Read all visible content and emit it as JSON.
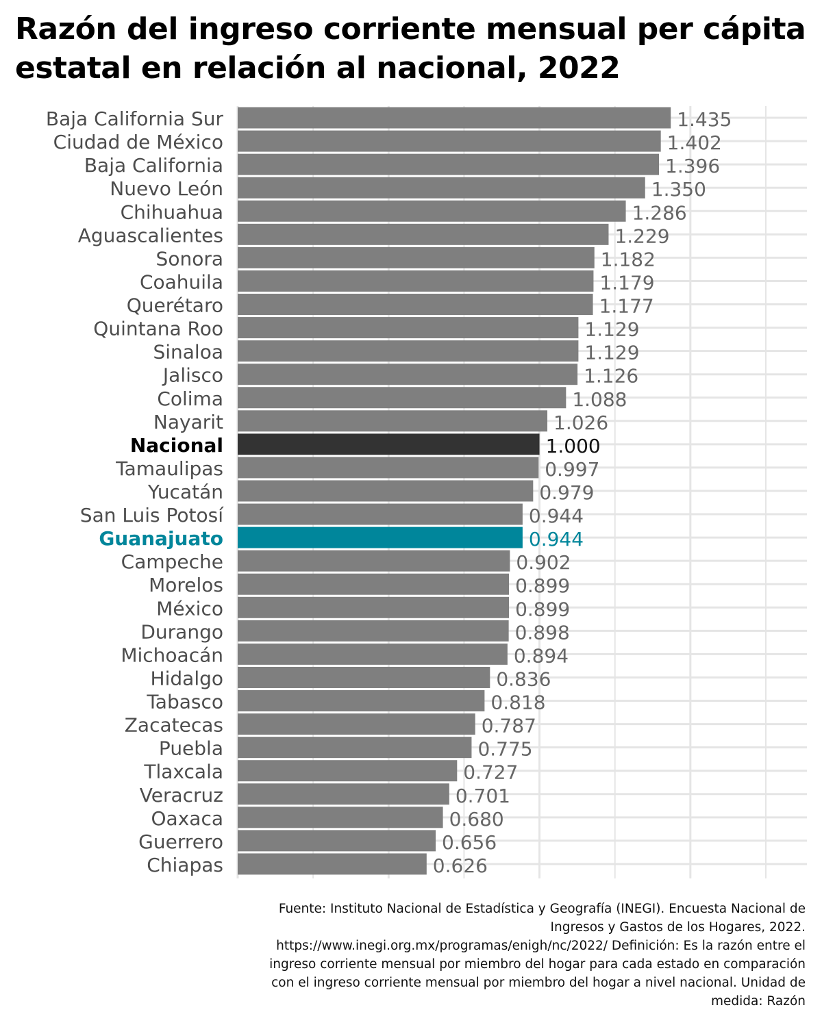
{
  "title": "Razón del ingreso corriente mensual per cápita estatal en relación al nacional, 2022",
  "source": "Fuente: Instituto Nacional de Estadística y Geografía (INEGI). Encuesta Nacional de Ingresos y Gastos de los Hogares, 2022. https://www.inegi.org.mx/programas/enigh/nc/2022/ Definición: Es la razón entre el ingreso corriente mensual por miembro del hogar para cada estado en comparación con el ingreso corriente mensual por miembro del hogar a nivel nacional. Unidad de medida: Razón",
  "colors": {
    "default_bar": "#7f7f7f",
    "national_bar": "#333333",
    "highlight_bar": "#00869b",
    "default_label": "#666666",
    "national_label": "#111111",
    "highlight_label": "#00869b",
    "grid": "#e5e5e5"
  },
  "chart_data": {
    "type": "bar",
    "orientation": "horizontal",
    "title": "Razón del ingreso corriente mensual per cápita estatal en relación al nacional, 2022",
    "xlabel": "",
    "ylabel": "",
    "xlim": [
      0,
      1.75
    ],
    "grid": true,
    "legend": "none",
    "categories": [
      "Baja California Sur",
      "Ciudad de México",
      "Baja California",
      "Nuevo León",
      "Chihuahua",
      "Aguascalientes",
      "Sonora",
      "Coahuila",
      "Querétaro",
      "Quintana Roo",
      "Sinaloa",
      "Jalisco",
      "Colima",
      "Nayarit",
      "Nacional",
      "Tamaulipas",
      "Yucatán",
      "San Luis Potosí",
      "Guanajuato",
      "Campeche",
      "Morelos",
      "México",
      "Durango",
      "Michoacán",
      "Hidalgo",
      "Tabasco",
      "Zacatecas",
      "Puebla",
      "Tlaxcala",
      "Veracruz",
      "Oaxaca",
      "Guerrero",
      "Chiapas"
    ],
    "values": [
      1.435,
      1.402,
      1.396,
      1.35,
      1.286,
      1.229,
      1.182,
      1.179,
      1.177,
      1.129,
      1.129,
      1.126,
      1.088,
      1.026,
      1.0,
      0.997,
      0.979,
      0.944,
      0.944,
      0.902,
      0.899,
      0.899,
      0.898,
      0.894,
      0.836,
      0.818,
      0.787,
      0.775,
      0.727,
      0.701,
      0.68,
      0.656,
      0.626
    ],
    "value_labels": [
      "1.435",
      "1.402",
      "1.396",
      "1.350",
      "1.286",
      "1.229",
      "1.182",
      "1.179",
      "1.177",
      "1.129",
      "1.129",
      "1.126",
      "1.088",
      "1.026",
      "1.000",
      "0.997",
      "0.979",
      "0.944",
      "0.944",
      "0.902",
      "0.899",
      "0.899",
      "0.898",
      "0.894",
      "0.836",
      "0.818",
      "0.787",
      "0.775",
      "0.727",
      "0.701",
      "0.680",
      "0.656",
      "0.626"
    ],
    "national_category": "Nacional",
    "highlight_category": "Guanajuato"
  }
}
